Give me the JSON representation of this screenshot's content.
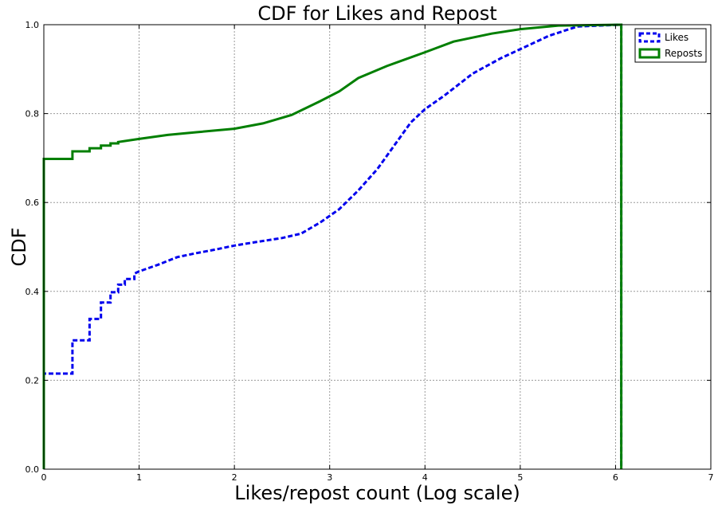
{
  "chart_data": {
    "type": "line",
    "title": "CDF for Likes and Repost",
    "xlabel": "Likes/repost count (Log scale)",
    "ylabel": "CDF",
    "xlim": [
      0,
      7
    ],
    "ylim": [
      0,
      1.0
    ],
    "x_ticks": [
      "0",
      "1",
      "2",
      "3",
      "4",
      "5",
      "6",
      "7"
    ],
    "y_ticks": [
      "0.0",
      "0.2",
      "0.4",
      "0.6",
      "0.8",
      "1.0"
    ],
    "grid": true,
    "legend_position": "top-right",
    "series": [
      {
        "name": "Likes",
        "color": "#0000ee",
        "style": "dashed",
        "points": [
          [
            0,
            0.0
          ],
          [
            0,
            0.215
          ],
          [
            0.3,
            0.215
          ],
          [
            0.3,
            0.29
          ],
          [
            0.48,
            0.29
          ],
          [
            0.48,
            0.338
          ],
          [
            0.6,
            0.338
          ],
          [
            0.6,
            0.375
          ],
          [
            0.7,
            0.375
          ],
          [
            0.7,
            0.398
          ],
          [
            0.78,
            0.398
          ],
          [
            0.78,
            0.415
          ],
          [
            0.85,
            0.415
          ],
          [
            0.85,
            0.428
          ],
          [
            0.95,
            0.428
          ],
          [
            0.95,
            0.44
          ],
          [
            1.0,
            0.445
          ],
          [
            1.2,
            0.46
          ],
          [
            1.4,
            0.477
          ],
          [
            1.6,
            0.486
          ],
          [
            1.8,
            0.494
          ],
          [
            2.0,
            0.503
          ],
          [
            2.2,
            0.51
          ],
          [
            2.5,
            0.52
          ],
          [
            2.7,
            0.53
          ],
          [
            2.9,
            0.555
          ],
          [
            3.1,
            0.585
          ],
          [
            3.3,
            0.627
          ],
          [
            3.5,
            0.675
          ],
          [
            3.7,
            0.735
          ],
          [
            3.85,
            0.78
          ],
          [
            4.0,
            0.81
          ],
          [
            4.2,
            0.84
          ],
          [
            4.5,
            0.89
          ],
          [
            4.8,
            0.925
          ],
          [
            5.0,
            0.945
          ],
          [
            5.3,
            0.975
          ],
          [
            5.6,
            0.996
          ],
          [
            6.06,
            1.0
          ],
          [
            6.06,
            0.0
          ]
        ]
      },
      {
        "name": "Reposts",
        "color": "#007f00",
        "style": "solid",
        "points": [
          [
            0,
            0.0
          ],
          [
            0,
            0.698
          ],
          [
            0.3,
            0.698
          ],
          [
            0.3,
            0.715
          ],
          [
            0.48,
            0.715
          ],
          [
            0.48,
            0.722
          ],
          [
            0.6,
            0.722
          ],
          [
            0.6,
            0.728
          ],
          [
            0.7,
            0.728
          ],
          [
            0.7,
            0.733
          ],
          [
            0.78,
            0.733
          ],
          [
            0.78,
            0.736
          ],
          [
            1.0,
            0.743
          ],
          [
            1.3,
            0.752
          ],
          [
            1.6,
            0.758
          ],
          [
            2.0,
            0.766
          ],
          [
            2.3,
            0.778
          ],
          [
            2.6,
            0.797
          ],
          [
            2.9,
            0.828
          ],
          [
            3.1,
            0.85
          ],
          [
            3.3,
            0.88
          ],
          [
            3.6,
            0.907
          ],
          [
            4.0,
            0.938
          ],
          [
            4.3,
            0.962
          ],
          [
            4.7,
            0.98
          ],
          [
            5.0,
            0.99
          ],
          [
            5.4,
            0.998
          ],
          [
            6.06,
            1.0
          ],
          [
            6.06,
            0.0
          ]
        ]
      }
    ]
  }
}
